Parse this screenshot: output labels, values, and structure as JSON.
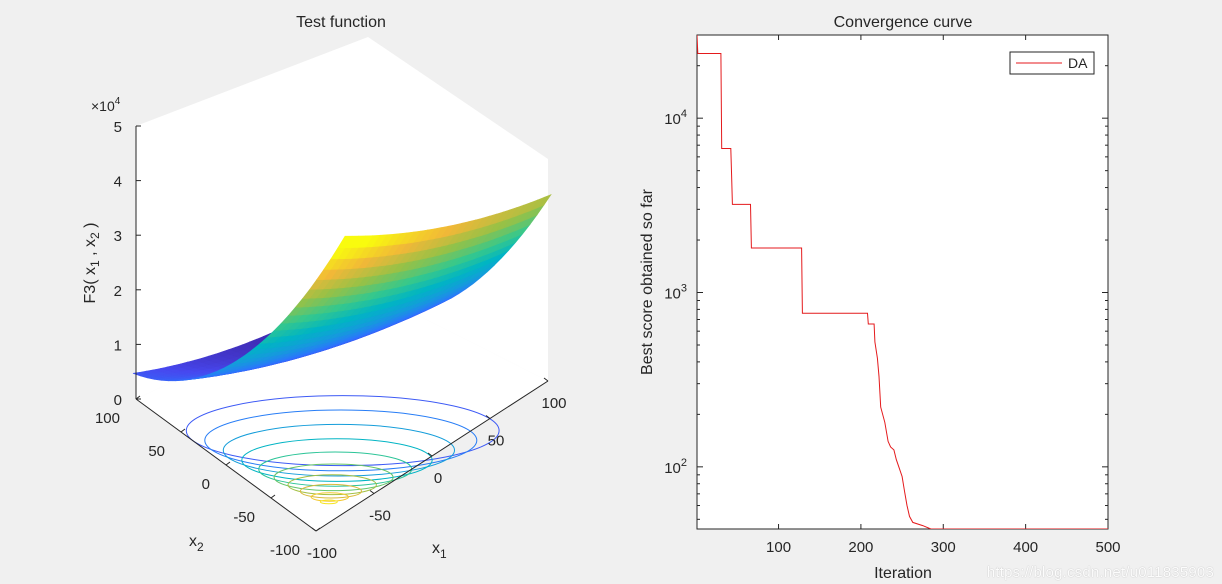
{
  "chart_data": [
    {
      "type": "surface",
      "title": "Test function",
      "zlabel_base": "F3( x",
      "zlabel_sub1": "1",
      "zlabel_mid": " , x",
      "zlabel_sub2": "2",
      "zlabel_end": " )",
      "xlabel_base": "x",
      "xlabel_sub": "1",
      "ylabel_base": "x",
      "ylabel_sub": "2",
      "zscale_base": "×10",
      "zscale_exp": "4",
      "x_ticks": [
        "-100",
        "-50",
        "0",
        "50",
        "100"
      ],
      "y_ticks": [
        "-100",
        "-50",
        "0",
        "50",
        "100"
      ],
      "z_ticks": [
        "0",
        "1",
        "2",
        "3",
        "4",
        "5"
      ],
      "xlim": [
        -100,
        100
      ],
      "ylim": [
        -100,
        100
      ],
      "zlim": [
        0,
        5
      ],
      "colormap": "parula",
      "contours_on_floor": true
    },
    {
      "type": "line",
      "title": "Convergence curve",
      "xlabel": "Iteration",
      "ylabel": "Best score obtained so far",
      "xlim": [
        1,
        500
      ],
      "ylim": [
        44,
        30000
      ],
      "yscale": "log",
      "x_ticks": [
        "100",
        "200",
        "300",
        "400",
        "500"
      ],
      "y_ticks": [
        {
          "base": "10",
          "exp": "2",
          "value": 100
        },
        {
          "base": "10",
          "exp": "3",
          "value": 1000
        },
        {
          "base": "10",
          "exp": "4",
          "value": 10000
        }
      ],
      "legend_position": "top-right",
      "series": [
        {
          "name": "DA",
          "color": "#e41a1c",
          "points": [
            [
              1,
              30000
            ],
            [
              2,
              23500
            ],
            [
              30,
              23500
            ],
            [
              31,
              6700
            ],
            [
              42,
              6700
            ],
            [
              43,
              4700
            ],
            [
              44,
              3200
            ],
            [
              66,
              3200
            ],
            [
              67,
              1800
            ],
            [
              128,
              1800
            ],
            [
              129,
              760
            ],
            [
              208,
              760
            ],
            [
              209,
              660
            ],
            [
              216,
              660
            ],
            [
              217,
              520
            ],
            [
              220,
              420
            ],
            [
              222,
              330
            ],
            [
              224,
              220
            ],
            [
              229,
              180
            ],
            [
              233,
              140
            ],
            [
              236,
              130
            ],
            [
              240,
              125
            ],
            [
              243,
              110
            ],
            [
              246,
              100
            ],
            [
              250,
              88
            ],
            [
              253,
              72
            ],
            [
              256,
              60
            ],
            [
              259,
              52
            ],
            [
              263,
              48
            ],
            [
              275,
              46
            ],
            [
              285,
              44
            ],
            [
              500,
              44
            ]
          ]
        }
      ]
    }
  ],
  "watermark": "https://blog.csdn.net/u011835903"
}
